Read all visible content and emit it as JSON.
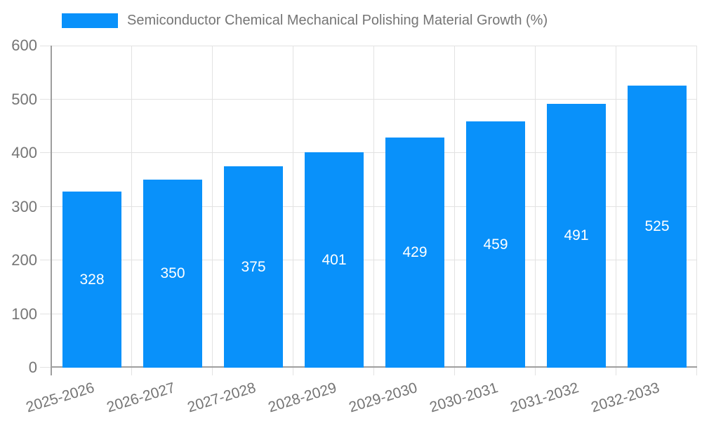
{
  "legend": {
    "position": "top-left",
    "items": [
      {
        "label": "Semiconductor Chemical Mechanical Polishing Material Growth (%)",
        "color": "#0991fa"
      }
    ]
  },
  "chart_data": {
    "type": "bar",
    "title": "Semiconductor Chemical Mechanical Polishing Material Growth (%)",
    "series_name": "Semiconductor Chemical Mechanical Polishing Material Growth (%)",
    "categories": [
      "2025-2026",
      "2026-2027",
      "2027-2028",
      "2028-2029",
      "2029-2030",
      "2030-2031",
      "2031-2032",
      "2032-2033"
    ],
    "values": [
      328,
      350,
      375,
      401,
      429,
      459,
      491,
      525
    ],
    "xlabel": "",
    "ylabel": "",
    "ylim": [
      0,
      600
    ],
    "yticks": [
      0,
      100,
      200,
      300,
      400,
      500,
      600
    ],
    "grid": true,
    "legend_position": "top-left",
    "x_label_rotation_deg": -17,
    "colors": {
      "bar": "#0991fa",
      "value_label": "#ffffff",
      "axis_text": "#757575",
      "grid_line": "#e2e2e2",
      "axis_line": "#9e9e9e",
      "background": "#ffffff"
    }
  }
}
